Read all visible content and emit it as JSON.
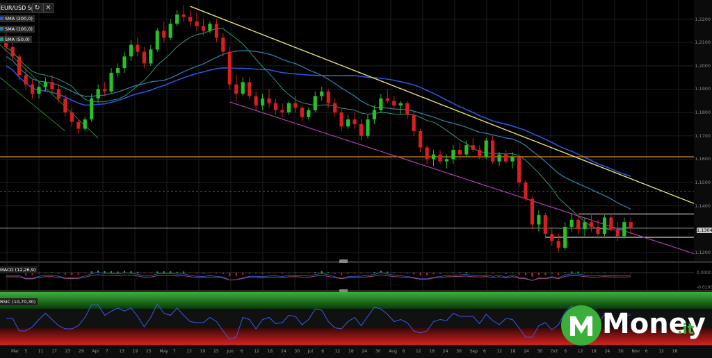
{
  "symbol": "EUR/USD Spot",
  "indicators": {
    "sma": [
      {
        "label": "SMA (200,0)",
        "color": "#2e55e0"
      },
      {
        "label": "SMA (100,0)",
        "color": "#2a7fa6"
      },
      {
        "label": "SMA (50,0)",
        "color": "#2f9a7a"
      }
    ],
    "macd_label": "MACD (12,26,9)",
    "rsi_label": "RSIC (10,70,30)"
  },
  "colors": {
    "bull": "#28c028",
    "bear": "#d81e1e",
    "trend_upper": "#e8e070",
    "trend_lower": "#b040b0",
    "horizontal_support": "#d88a20",
    "dashed_level": "#d02020",
    "range_box": "#ffffff",
    "current_line": "#9a9a9a"
  },
  "chart_data": {
    "type": "candlestick",
    "title": "EUR/USD Spot",
    "y_ticks": [
      "1.2200",
      "1.2100",
      "1.2000",
      "1.1900",
      "1.1800",
      "1.1700",
      "1.1600",
      "1.1500",
      "1.1400",
      "1.1200"
    ],
    "current_price": "1.1304",
    "ylim": [
      1.117,
      1.227
    ],
    "x_ticks": [
      "Mar",
      "5",
      "11",
      "17",
      "23",
      "29",
      "Apr",
      "7",
      "13",
      "19",
      "25",
      "May",
      "7",
      "13",
      "19",
      "25",
      "Jun",
      "6",
      "12",
      "18",
      "24",
      "30",
      "Jul",
      "6",
      "12",
      "18",
      "24",
      "30",
      "Aug",
      "6",
      "12",
      "18",
      "24",
      "30",
      "Sep",
      "6",
      "12",
      "18",
      "24",
      "30",
      "Oct",
      "6",
      "12",
      "18",
      "24",
      "30",
      "Nov",
      "6",
      "12",
      "18"
    ],
    "horizontal_level": 1.161,
    "dashed_level": 1.146,
    "range_top": 1.1365,
    "range_bottom": 1.1265,
    "candles": [
      {
        "o": 1.21,
        "h": 1.214,
        "l": 1.206,
        "c": 1.208
      },
      {
        "o": 1.208,
        "h": 1.21,
        "l": 1.202,
        "c": 1.204
      },
      {
        "o": 1.204,
        "h": 1.205,
        "l": 1.194,
        "c": 1.196
      },
      {
        "o": 1.196,
        "h": 1.199,
        "l": 1.19,
        "c": 1.192
      },
      {
        "o": 1.192,
        "h": 1.194,
        "l": 1.186,
        "c": 1.188
      },
      {
        "o": 1.188,
        "h": 1.193,
        "l": 1.186,
        "c": 1.191
      },
      {
        "o": 1.191,
        "h": 1.195,
        "l": 1.189,
        "c": 1.193
      },
      {
        "o": 1.193,
        "h": 1.196,
        "l": 1.188,
        "c": 1.19
      },
      {
        "o": 1.19,
        "h": 1.192,
        "l": 1.184,
        "c": 1.186
      },
      {
        "o": 1.186,
        "h": 1.188,
        "l": 1.178,
        "c": 1.18
      },
      {
        "o": 1.18,
        "h": 1.182,
        "l": 1.174,
        "c": 1.176
      },
      {
        "o": 1.176,
        "h": 1.177,
        "l": 1.171,
        "c": 1.173
      },
      {
        "o": 1.173,
        "h": 1.178,
        "l": 1.172,
        "c": 1.177
      },
      {
        "o": 1.177,
        "h": 1.188,
        "l": 1.176,
        "c": 1.186
      },
      {
        "o": 1.186,
        "h": 1.192,
        "l": 1.184,
        "c": 1.19
      },
      {
        "o": 1.19,
        "h": 1.193,
        "l": 1.187,
        "c": 1.189
      },
      {
        "o": 1.189,
        "h": 1.199,
        "l": 1.188,
        "c": 1.197
      },
      {
        "o": 1.197,
        "h": 1.201,
        "l": 1.195,
        "c": 1.199
      },
      {
        "o": 1.199,
        "h": 1.206,
        "l": 1.197,
        "c": 1.204
      },
      {
        "o": 1.204,
        "h": 1.211,
        "l": 1.202,
        "c": 1.209
      },
      {
        "o": 1.209,
        "h": 1.212,
        "l": 1.204,
        "c": 1.206
      },
      {
        "o": 1.206,
        "h": 1.208,
        "l": 1.199,
        "c": 1.201
      },
      {
        "o": 1.201,
        "h": 1.209,
        "l": 1.2,
        "c": 1.207
      },
      {
        "o": 1.207,
        "h": 1.216,
        "l": 1.206,
        "c": 1.215
      },
      {
        "o": 1.215,
        "h": 1.219,
        "l": 1.21,
        "c": 1.212
      },
      {
        "o": 1.212,
        "h": 1.22,
        "l": 1.211,
        "c": 1.218
      },
      {
        "o": 1.218,
        "h": 1.224,
        "l": 1.217,
        "c": 1.222
      },
      {
        "o": 1.222,
        "h": 1.226,
        "l": 1.219,
        "c": 1.221
      },
      {
        "o": 1.221,
        "h": 1.224,
        "l": 1.217,
        "c": 1.219
      },
      {
        "o": 1.219,
        "h": 1.223,
        "l": 1.215,
        "c": 1.217
      },
      {
        "o": 1.217,
        "h": 1.22,
        "l": 1.213,
        "c": 1.215
      },
      {
        "o": 1.215,
        "h": 1.219,
        "l": 1.214,
        "c": 1.218
      },
      {
        "o": 1.218,
        "h": 1.22,
        "l": 1.21,
        "c": 1.212
      },
      {
        "o": 1.212,
        "h": 1.214,
        "l": 1.204,
        "c": 1.206
      },
      {
        "o": 1.206,
        "h": 1.208,
        "l": 1.19,
        "c": 1.192
      },
      {
        "o": 1.192,
        "h": 1.196,
        "l": 1.185,
        "c": 1.188
      },
      {
        "o": 1.188,
        "h": 1.195,
        "l": 1.187,
        "c": 1.193
      },
      {
        "o": 1.193,
        "h": 1.195,
        "l": 1.186,
        "c": 1.187
      },
      {
        "o": 1.187,
        "h": 1.189,
        "l": 1.181,
        "c": 1.183
      },
      {
        "o": 1.183,
        "h": 1.188,
        "l": 1.181,
        "c": 1.186
      },
      {
        "o": 1.186,
        "h": 1.19,
        "l": 1.182,
        "c": 1.184
      },
      {
        "o": 1.184,
        "h": 1.186,
        "l": 1.179,
        "c": 1.181
      },
      {
        "o": 1.181,
        "h": 1.184,
        "l": 1.178,
        "c": 1.18
      },
      {
        "o": 1.18,
        "h": 1.185,
        "l": 1.179,
        "c": 1.184
      },
      {
        "o": 1.184,
        "h": 1.187,
        "l": 1.18,
        "c": 1.182
      },
      {
        "o": 1.182,
        "h": 1.183,
        "l": 1.176,
        "c": 1.178
      },
      {
        "o": 1.178,
        "h": 1.182,
        "l": 1.177,
        "c": 1.181
      },
      {
        "o": 1.181,
        "h": 1.189,
        "l": 1.18,
        "c": 1.187
      },
      {
        "o": 1.187,
        "h": 1.191,
        "l": 1.185,
        "c": 1.189
      },
      {
        "o": 1.189,
        "h": 1.19,
        "l": 1.182,
        "c": 1.184
      },
      {
        "o": 1.184,
        "h": 1.186,
        "l": 1.178,
        "c": 1.18
      },
      {
        "o": 1.18,
        "h": 1.182,
        "l": 1.172,
        "c": 1.174
      },
      {
        "o": 1.174,
        "h": 1.179,
        "l": 1.173,
        "c": 1.177
      },
      {
        "o": 1.177,
        "h": 1.18,
        "l": 1.173,
        "c": 1.175
      },
      {
        "o": 1.175,
        "h": 1.177,
        "l": 1.168,
        "c": 1.17
      },
      {
        "o": 1.17,
        "h": 1.179,
        "l": 1.169,
        "c": 1.177
      },
      {
        "o": 1.177,
        "h": 1.183,
        "l": 1.175,
        "c": 1.181
      },
      {
        "o": 1.181,
        "h": 1.188,
        "l": 1.18,
        "c": 1.186
      },
      {
        "o": 1.186,
        "h": 1.19,
        "l": 1.184,
        "c": 1.185
      },
      {
        "o": 1.185,
        "h": 1.187,
        "l": 1.181,
        "c": 1.183
      },
      {
        "o": 1.183,
        "h": 1.185,
        "l": 1.179,
        "c": 1.184
      },
      {
        "o": 1.184,
        "h": 1.185,
        "l": 1.177,
        "c": 1.179
      },
      {
        "o": 1.179,
        "h": 1.18,
        "l": 1.17,
        "c": 1.172
      },
      {
        "o": 1.172,
        "h": 1.173,
        "l": 1.163,
        "c": 1.165
      },
      {
        "o": 1.165,
        "h": 1.166,
        "l": 1.158,
        "c": 1.16
      },
      {
        "o": 1.16,
        "h": 1.164,
        "l": 1.157,
        "c": 1.162
      },
      {
        "o": 1.162,
        "h": 1.164,
        "l": 1.158,
        "c": 1.159
      },
      {
        "o": 1.159,
        "h": 1.162,
        "l": 1.156,
        "c": 1.16
      },
      {
        "o": 1.16,
        "h": 1.166,
        "l": 1.158,
        "c": 1.164
      },
      {
        "o": 1.164,
        "h": 1.167,
        "l": 1.16,
        "c": 1.162
      },
      {
        "o": 1.162,
        "h": 1.168,
        "l": 1.161,
        "c": 1.166
      },
      {
        "o": 1.166,
        "h": 1.169,
        "l": 1.163,
        "c": 1.164
      },
      {
        "o": 1.164,
        "h": 1.166,
        "l": 1.16,
        "c": 1.161
      },
      {
        "o": 1.161,
        "h": 1.169,
        "l": 1.16,
        "c": 1.168
      },
      {
        "o": 1.168,
        "h": 1.17,
        "l": 1.158,
        "c": 1.159
      },
      {
        "o": 1.159,
        "h": 1.163,
        "l": 1.157,
        "c": 1.162
      },
      {
        "o": 1.162,
        "h": 1.164,
        "l": 1.158,
        "c": 1.159
      },
      {
        "o": 1.159,
        "h": 1.163,
        "l": 1.156,
        "c": 1.161
      },
      {
        "o": 1.161,
        "h": 1.162,
        "l": 1.148,
        "c": 1.15
      },
      {
        "o": 1.15,
        "h": 1.151,
        "l": 1.142,
        "c": 1.143
      },
      {
        "o": 1.143,
        "h": 1.144,
        "l": 1.13,
        "c": 1.132
      },
      {
        "o": 1.132,
        "h": 1.138,
        "l": 1.129,
        "c": 1.136
      },
      {
        "o": 1.136,
        "h": 1.137,
        "l": 1.126,
        "c": 1.128
      },
      {
        "o": 1.128,
        "h": 1.13,
        "l": 1.123,
        "c": 1.125
      },
      {
        "o": 1.125,
        "h": 1.128,
        "l": 1.12,
        "c": 1.122
      },
      {
        "o": 1.122,
        "h": 1.133,
        "l": 1.121,
        "c": 1.131
      },
      {
        "o": 1.131,
        "h": 1.137,
        "l": 1.129,
        "c": 1.134
      },
      {
        "o": 1.134,
        "h": 1.136,
        "l": 1.128,
        "c": 1.13
      },
      {
        "o": 1.13,
        "h": 1.135,
        "l": 1.127,
        "c": 1.133
      },
      {
        "o": 1.133,
        "h": 1.136,
        "l": 1.129,
        "c": 1.131
      },
      {
        "o": 1.131,
        "h": 1.134,
        "l": 1.126,
        "c": 1.128
      },
      {
        "o": 1.128,
        "h": 1.136,
        "l": 1.127,
        "c": 1.135
      },
      {
        "o": 1.135,
        "h": 1.136,
        "l": 1.129,
        "c": 1.13
      },
      {
        "o": 1.13,
        "h": 1.133,
        "l": 1.125,
        "c": 1.127
      },
      {
        "o": 1.127,
        "h": 1.135,
        "l": 1.126,
        "c": 1.133
      },
      {
        "o": 1.133,
        "h": 1.135,
        "l": 1.128,
        "c": 1.1304
      }
    ]
  },
  "branding": {
    "logo_main": "Money",
    "logo_suffix": ".it"
  }
}
